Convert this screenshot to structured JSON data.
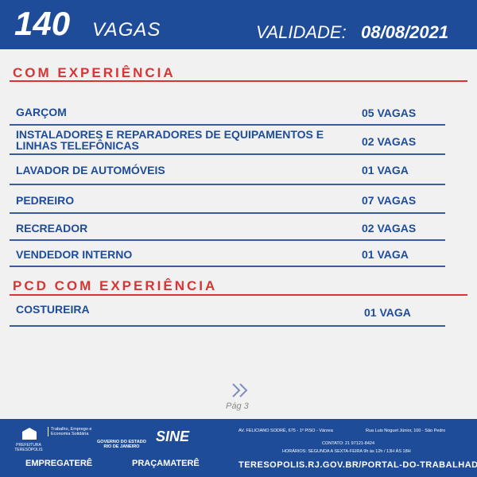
{
  "header": {
    "count": "140",
    "word": "VAGAS",
    "validity_label": "VALIDADE:",
    "validity_date": "08/08/2021"
  },
  "sections": [
    {
      "title": "COM EXPERIÊNCIA",
      "jobs": [
        {
          "title": "GARÇOM",
          "vacancies": "05 VAGAS"
        },
        {
          "title": "INSTALADORES E REPARADORES DE EQUIPAMENTOS E LINHAS TELEFÔNICAS",
          "vacancies": "02 VAGAS"
        },
        {
          "title": "LAVADOR DE AUTOMÓVEIS",
          "vacancies": "01 VAGA"
        },
        {
          "title": "PEDREIRO",
          "vacancies": "07 VAGAS"
        },
        {
          "title": "RECREADOR",
          "vacancies": "02 VAGAS"
        },
        {
          "title": "VENDEDOR INTERNO",
          "vacancies": "01 VAGA"
        }
      ]
    },
    {
      "title": "PCD COM EXPERIÊNCIA",
      "jobs": [
        {
          "title": "COSTUREIRA",
          "vacancies": "01 VAGA"
        }
      ]
    }
  ],
  "page_label": "Pág 3",
  "footer": {
    "city_hall": "PREFEITURA TERESÓPOLIS",
    "department": "Trabalho, Emprego e Economia Solidária",
    "state": "GOVERNO DO ESTADO RIO DE JANEIRO",
    "sine": "SINE",
    "empregatere": "EMPREGATERÊ",
    "pracamatere": "PRAÇAMATERÊ",
    "address_1": "AV. FELICIANO SODRÉ, 675 - 1º PISO - Várzea",
    "address_2": "Rua Luis Noguet Júnior, 100 - São Pedro",
    "contact": "CONTATO: 21 97121-8424",
    "hours": "HORÁRIOS: SEGUNDA A SEXTA-FEIRA 9h às 12h / 13H ÀS 18H",
    "url": "TERESOPOLIS.RJ.GOV.BR/PORTAL-DO-TRABALHADOR"
  }
}
